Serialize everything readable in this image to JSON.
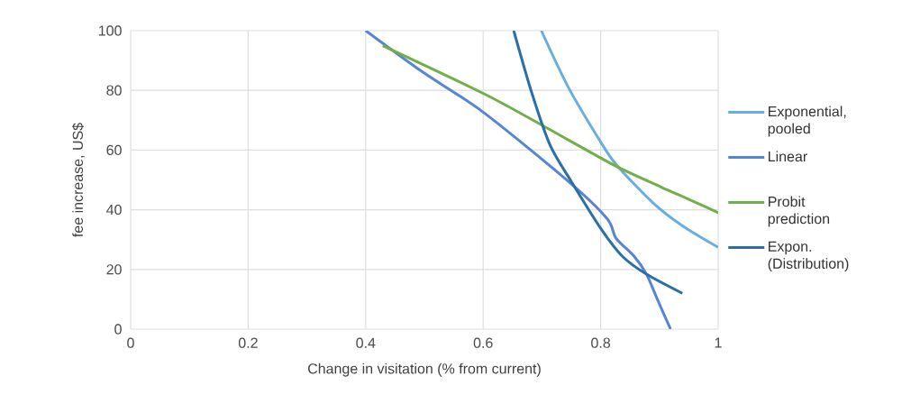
{
  "chart_data": {
    "type": "line",
    "xlabel": "Change in visitation (% from current)",
    "ylabel": "fee increase, US$",
    "xlim": [
      0,
      1
    ],
    "ylim": [
      0,
      100
    ],
    "xticks": [
      0,
      0.2,
      0.4,
      0.6,
      0.8,
      1
    ],
    "yticks": [
      0,
      20,
      40,
      60,
      80,
      100
    ],
    "grid": true,
    "legend": "right",
    "marker": "none",
    "line_style": "solid",
    "series": [
      {
        "name": "Exponential, pooled",
        "color": "#6aaee0",
        "x": [
          0.699,
          0.745,
          0.8,
          0.827,
          0.888,
          0.94,
          1.0
        ],
        "values": [
          100,
          81,
          62.7,
          55,
          42.5,
          34.5,
          27.4
        ]
      },
      {
        "name": "Linear",
        "color": "#5585d4",
        "x": [
          0.4,
          0.498,
          0.6,
          0.745,
          0.811,
          0.826,
          0.857,
          0.878,
          0.898,
          0.919
        ],
        "values": [
          100,
          86,
          72.7,
          49.5,
          37,
          30.5,
          24.4,
          18.4,
          9.3,
          0
        ]
      },
      {
        "name": "Probit prediction",
        "color": "#72ae4a",
        "x": [
          0.429,
          0.6,
          0.704,
          0.822,
          0.904,
          0.95,
          1.0
        ],
        "values": [
          95,
          79,
          67.9,
          55,
          47.5,
          43.5,
          39
        ]
      },
      {
        "name": "Expon. (Distribution)",
        "color": "#2a6fa8",
        "x": [
          0.652,
          0.683,
          0.714,
          0.75,
          0.801,
          0.837,
          0.878,
          0.939
        ],
        "values": [
          100,
          79,
          61.6,
          49.5,
          33.5,
          24.4,
          18.4,
          12
        ]
      }
    ]
  }
}
